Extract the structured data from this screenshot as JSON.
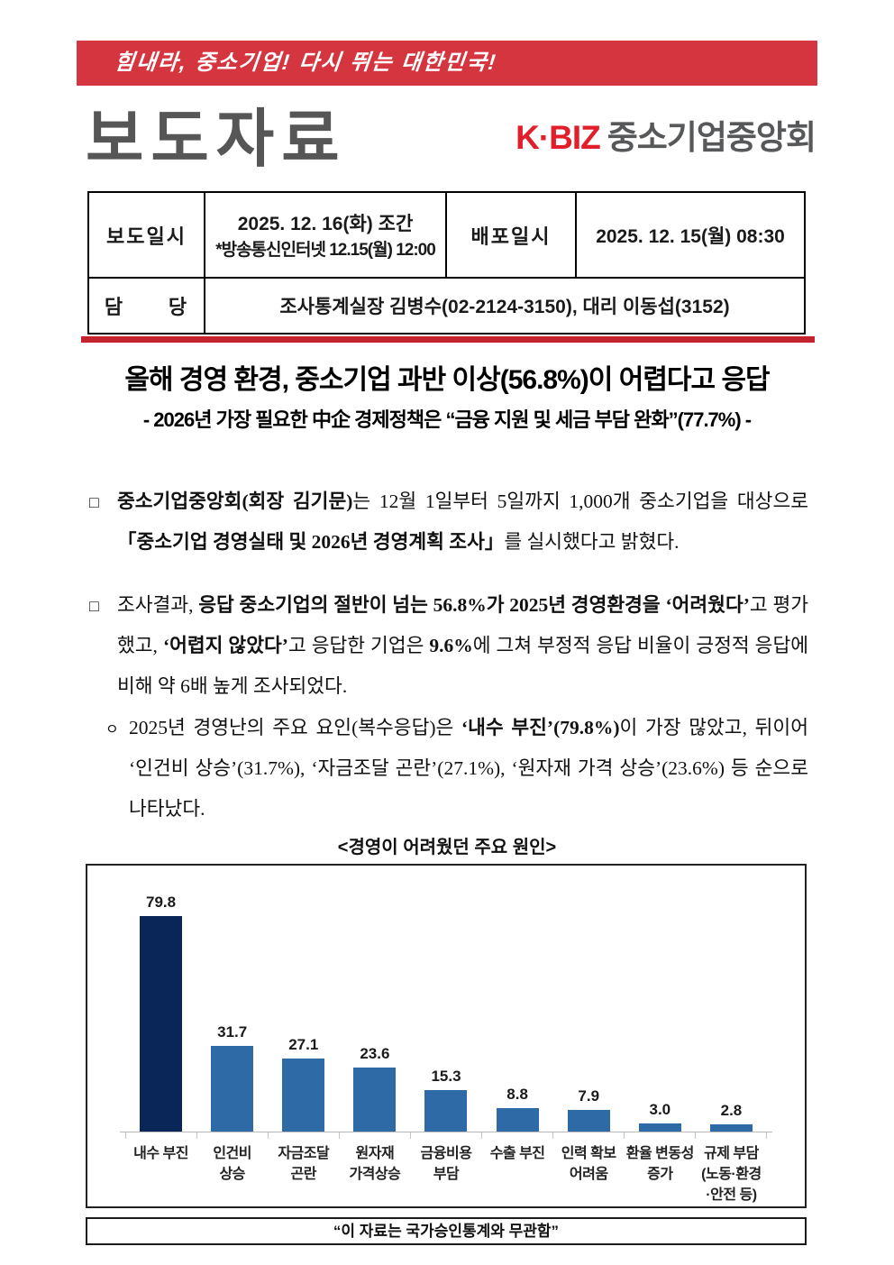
{
  "banner": {
    "slogan": "힘내라, 중소기업! 다시 뛰는 대한민국!"
  },
  "header": {
    "doc_type": "보도자료",
    "logo_red": "K·BIZ",
    "logo_gray": "중소기업중앙회"
  },
  "info_table": {
    "release_label": "보도일시",
    "release_line1": "2025. 12. 16(화) 조간",
    "release_line2": "*방송통신인터넷 12.15(월) 12:00",
    "distribute_label": "배포일시",
    "distribute_value": "2025. 12. 15(월) 08:30",
    "contact_label": "담      당",
    "contact_value": "조사통계실장 김병수(02-2124-3150), 대리 이동섭(3152)"
  },
  "headline": {
    "title": "올해 경영 환경, 중소기업 과반 이상(56.8%)이 어렵다고 응답",
    "subtitle": "- 2026년 가장 필요한 中企 경제정책은 “금융 지원 및 세금 부담 완화”(77.7%) -"
  },
  "paragraphs": [
    {
      "bullet": "□",
      "segments": [
        {
          "t": "중소기업중앙회(회장 김기문)",
          "b": true
        },
        {
          "t": "는 12월 1일부터 5일까지 1,000개 중소기업을 대상으로 ",
          "b": false
        },
        {
          "t": "「중소기업 경영실태 및 2026년 경영계획 조사」",
          "b": true
        },
        {
          "t": "를 실시했다고 밝혔다.",
          "b": false
        }
      ]
    },
    {
      "bullet": "□",
      "segments": [
        {
          "t": "조사결과, ",
          "b": false
        },
        {
          "t": "응답 중소기업의 절반이 넘는 56.8%가 2025년 경영환경을 ‘어려웠다’",
          "b": true
        },
        {
          "t": "고 평가했고, ",
          "b": false
        },
        {
          "t": "‘어렵지 않았다’",
          "b": true
        },
        {
          "t": "고 응답한 기업은 ",
          "b": false
        },
        {
          "t": "9.6%",
          "b": true
        },
        {
          "t": "에 그쳐 부정적 응답 비율이 긍정적 응답에 비해 약 6배 높게 조사되었다.",
          "b": false
        }
      ]
    },
    {
      "bullet": "ㅇ",
      "segments": [
        {
          "t": "2025년 경영난의 주요 요인(복수응답)은 ",
          "b": false
        },
        {
          "t": "‘내수 부진’(79.8%)",
          "b": true
        },
        {
          "t": "이 가장 많았고, 뒤이어 ‘인건비 상승’(31.7%), ‘자금조달 곤란’(27.1%), ‘원자재 가격 상승’(23.6%) 등 순으로 나타났다.",
          "b": false
        }
      ]
    }
  ],
  "chart_data": {
    "type": "bar",
    "title": "<경영이 어려웠던 주요 원인>",
    "categories": [
      "내수 부진",
      "인건비\n상승",
      "자금조달\n곤란",
      "원자재\n가격상승",
      "금융비용\n부담",
      "수출 부진",
      "인력 확보\n어려움",
      "환율 변동성\n증가",
      "규제 부담\n(노동·환경\n·안전 등)"
    ],
    "values": [
      79.8,
      31.7,
      27.1,
      23.6,
      15.3,
      8.8,
      7.9,
      3.0,
      2.8
    ],
    "value_labels": true,
    "grid": false,
    "ylim": [
      0,
      85
    ],
    "bar_color": "#2e6aa5",
    "bar_color_highlight": "#0a2558"
  },
  "footer": {
    "note": "“이 자료는 국가승인통계와 무관함”"
  }
}
